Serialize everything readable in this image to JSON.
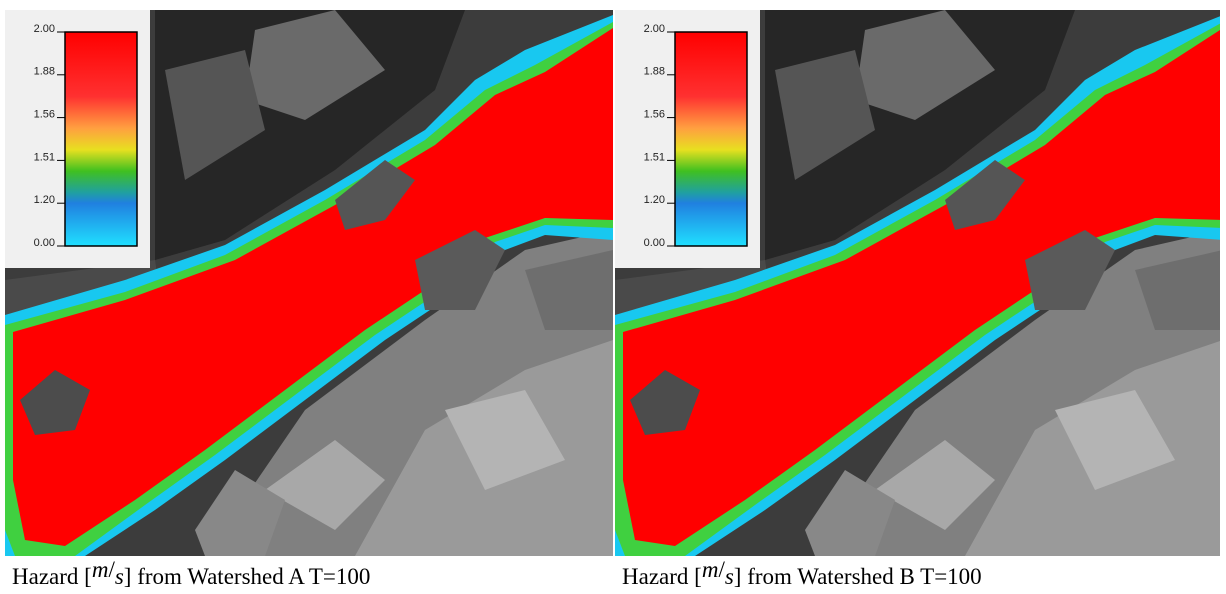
{
  "panels": [
    {
      "legend": {
        "ticks": [
          "2.00",
          "1.88",
          "1.56",
          "1.51",
          "1.20",
          "0.00"
        ]
      },
      "caption": {
        "prefix": "Hazard [",
        "numerator": "m",
        "separator": "/",
        "denominator": "s",
        "suffix": "] from Watershed A T=100"
      }
    },
    {
      "legend": {
        "ticks": [
          "2.00",
          "1.88",
          "1.56",
          "1.51",
          "1.20",
          "0.00"
        ]
      },
      "caption": {
        "prefix": "Hazard [",
        "numerator": "m",
        "separator": "/",
        "denominator": "s",
        "suffix": "] from Watershed B T=100"
      }
    }
  ]
}
